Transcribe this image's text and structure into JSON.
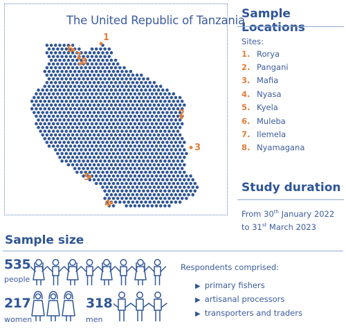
{
  "map": {
    "title": "The United Republic of Tanzania",
    "labels": [
      "1",
      "2",
      "3",
      "4",
      "5",
      "6",
      "7",
      "8"
    ]
  },
  "locations": {
    "title": "Sample Locations",
    "sites_label": "Sites:",
    "sites": [
      {
        "num": "1.",
        "name": "Rorya"
      },
      {
        "num": "2.",
        "name": "Pangani"
      },
      {
        "num": "3.",
        "name": "Mafia"
      },
      {
        "num": "4.",
        "name": "Nyasa"
      },
      {
        "num": "5.",
        "name": "Kyela"
      },
      {
        "num": "6.",
        "name": "Muleba"
      },
      {
        "num": "7.",
        "name": "Ilemela"
      },
      {
        "num": "8.",
        "name": "Nyamagana"
      }
    ]
  },
  "duration": {
    "title": "Study duration",
    "line1_prefix": "From 30",
    "line1_sup": "th",
    "line1_suffix": " January 2022",
    "line2_prefix": "to 31",
    "line2_sup": "st",
    "line2_suffix": " March 2023"
  },
  "sample": {
    "title": "Sample size",
    "total": "535",
    "total_unit": "people",
    "women": "217",
    "women_unit": "women",
    "men": "318",
    "men_unit": "men"
  },
  "respondents": {
    "label": "Respondents comprised:",
    "items": [
      "primary fishers",
      "artisanal processors",
      "transporters and traders"
    ]
  },
  "colors": {
    "blue": "#2f5597",
    "orange": "#e07f3c"
  }
}
